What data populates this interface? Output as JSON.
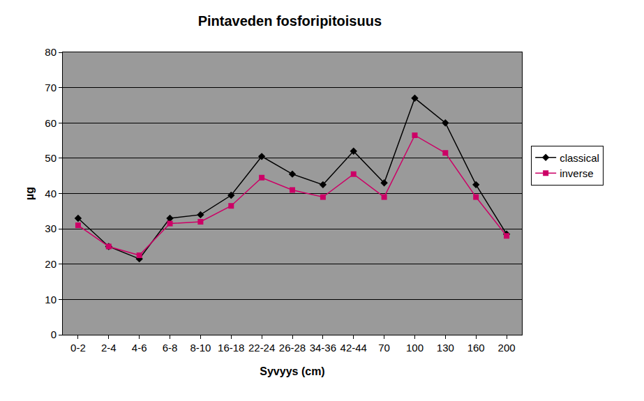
{
  "chart_data": {
    "type": "line",
    "title": "Pintaveden fosforipitoisuus",
    "x_label": "Syvyys (cm)",
    "y_label": "µg",
    "categories": [
      "0-2",
      "2-4",
      "4-6",
      "6-8",
      "8-10",
      "16-18",
      "22-24",
      "26-28",
      "34-36",
      "42-44",
      "70",
      "100",
      "130",
      "160",
      "200"
    ],
    "series": [
      {
        "name": "classical",
        "color": "#000000",
        "marker": "diamond",
        "values": [
          33,
          25,
          21.5,
          33,
          34,
          39.5,
          50.5,
          45.5,
          42.5,
          52,
          43,
          67,
          60,
          42.5,
          28.5
        ]
      },
      {
        "name": "inverse",
        "color": "#cc0066",
        "marker": "square",
        "values": [
          31,
          25,
          22.5,
          31.5,
          32,
          36.5,
          44.5,
          41,
          39,
          45.5,
          39,
          56.5,
          51.5,
          39,
          28
        ]
      }
    ],
    "ylim": [
      0,
      80
    ],
    "yticks": [
      0,
      10,
      20,
      30,
      40,
      50,
      60,
      70,
      80
    ],
    "grid": true,
    "legend": "right"
  }
}
